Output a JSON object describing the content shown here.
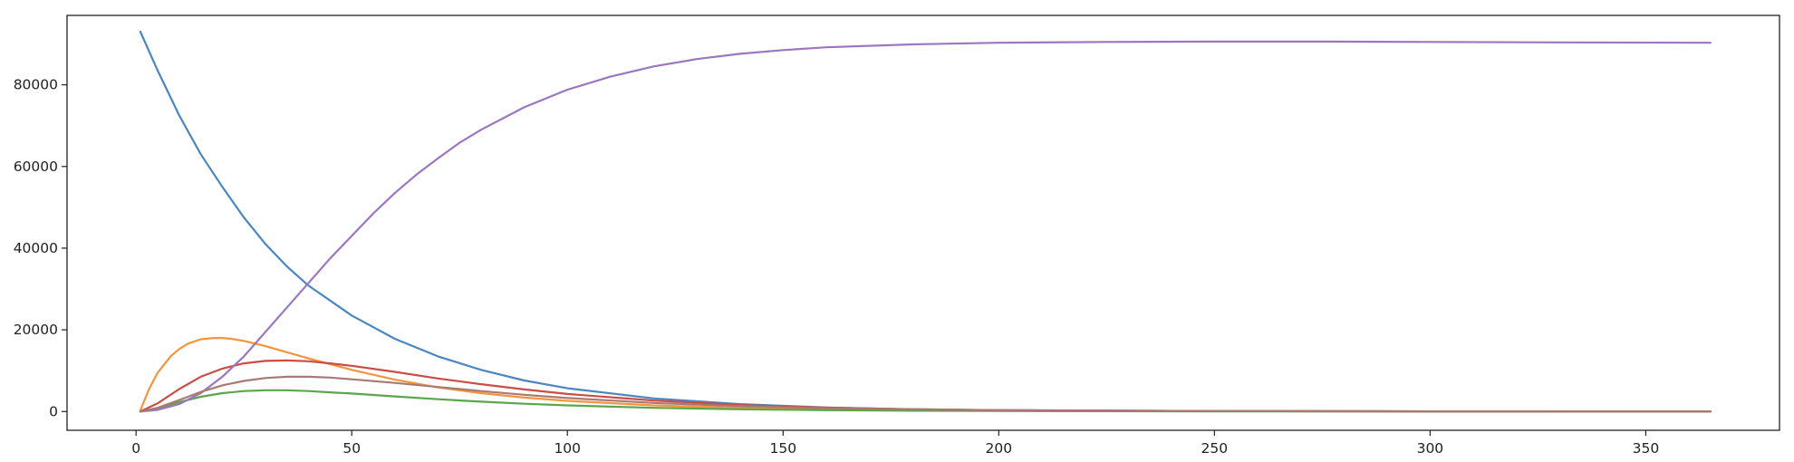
{
  "chart_data": {
    "type": "line",
    "title": "",
    "xlabel": "",
    "ylabel": "",
    "xlim": [
      -16,
      381
    ],
    "ylim": [
      -4600,
      97000
    ],
    "x_ticks": [
      0,
      50,
      100,
      150,
      200,
      250,
      300,
      350
    ],
    "y_ticks": [
      0,
      20000,
      40000,
      60000,
      80000
    ],
    "x_tick_labels": [
      "0",
      "50",
      "100",
      "150",
      "200",
      "250",
      "300",
      "350"
    ],
    "y_tick_labels": [
      "0",
      "20000",
      "40000",
      "60000",
      "80000"
    ],
    "grid": false,
    "legend": "none",
    "series": [
      {
        "color": "#4a86c0",
        "x": [
          1,
          5,
          10,
          15,
          20,
          25,
          30,
          35,
          40,
          50,
          60,
          70,
          80,
          90,
          100,
          120,
          140,
          160,
          180,
          200,
          250,
          300,
          365
        ],
        "y": [
          93000,
          83500,
          72500,
          63000,
          55000,
          47500,
          41000,
          35500,
          30800,
          23500,
          17800,
          13500,
          10200,
          7600,
          5700,
          3200,
          1800,
          1000,
          550,
          320,
          100,
          40,
          20
        ]
      },
      {
        "color": "#f4953e",
        "x": [
          1,
          3,
          5,
          8,
          10,
          12,
          15,
          18,
          20,
          22,
          25,
          30,
          35,
          40,
          45,
          50,
          60,
          70,
          80,
          90,
          100,
          120,
          140,
          160,
          180,
          200,
          250,
          300,
          365
        ],
        "y": [
          300,
          5500,
          9500,
          13500,
          15300,
          16600,
          17700,
          18000,
          18000,
          17800,
          17300,
          16000,
          14500,
          13000,
          11600,
          10200,
          7800,
          5900,
          4500,
          3400,
          2600,
          1500,
          900,
          500,
          300,
          200,
          80,
          40,
          20
        ]
      },
      {
        "color": "#5aa64a",
        "x": [
          1,
          5,
          10,
          15,
          20,
          25,
          30,
          35,
          40,
          45,
          50,
          60,
          70,
          80,
          90,
          100,
          120,
          140,
          160,
          180,
          200,
          250,
          300,
          365
        ],
        "y": [
          50,
          800,
          2300,
          3600,
          4500,
          5000,
          5200,
          5200,
          5000,
          4700,
          4400,
          3700,
          3000,
          2400,
          1900,
          1500,
          900,
          550,
          330,
          200,
          120,
          40,
          20,
          10
        ]
      },
      {
        "color": "#cc4d45",
        "x": [
          1,
          5,
          10,
          15,
          20,
          25,
          30,
          35,
          40,
          45,
          50,
          60,
          70,
          80,
          90,
          100,
          120,
          140,
          160,
          180,
          200,
          250,
          300,
          365
        ],
        "y": [
          0,
          2000,
          5500,
          8500,
          10500,
          11800,
          12400,
          12500,
          12300,
          11800,
          11200,
          9700,
          8100,
          6700,
          5400,
          4300,
          2700,
          1600,
          950,
          550,
          330,
          100,
          40,
          20
        ]
      },
      {
        "color": "#9b76c1",
        "x": [
          1,
          5,
          10,
          15,
          20,
          25,
          30,
          35,
          40,
          45,
          50,
          55,
          60,
          65,
          70,
          75,
          80,
          90,
          100,
          110,
          120,
          130,
          140,
          150,
          160,
          180,
          200,
          225,
          250,
          275,
          300,
          330,
          365
        ],
        "y": [
          0,
          400,
          1800,
          4500,
          8500,
          13500,
          19500,
          25500,
          31500,
          37500,
          43000,
          48500,
          53500,
          58000,
          62000,
          65800,
          69000,
          74500,
          78800,
          82000,
          84500,
          86300,
          87600,
          88500,
          89200,
          89900,
          90300,
          90500,
          90600,
          90600,
          90500,
          90400,
          90300
        ]
      },
      {
        "color": "#a87a72",
        "x": [
          1,
          5,
          10,
          15,
          20,
          25,
          30,
          35,
          40,
          45,
          50,
          60,
          70,
          80,
          90,
          100,
          120,
          140,
          160,
          180,
          200,
          250,
          300,
          365
        ],
        "y": [
          0,
          900,
          2800,
          4800,
          6400,
          7500,
          8200,
          8500,
          8500,
          8300,
          7900,
          7000,
          6000,
          5000,
          4100,
          3300,
          2100,
          1300,
          800,
          500,
          300,
          100,
          40,
          20
        ]
      }
    ]
  }
}
